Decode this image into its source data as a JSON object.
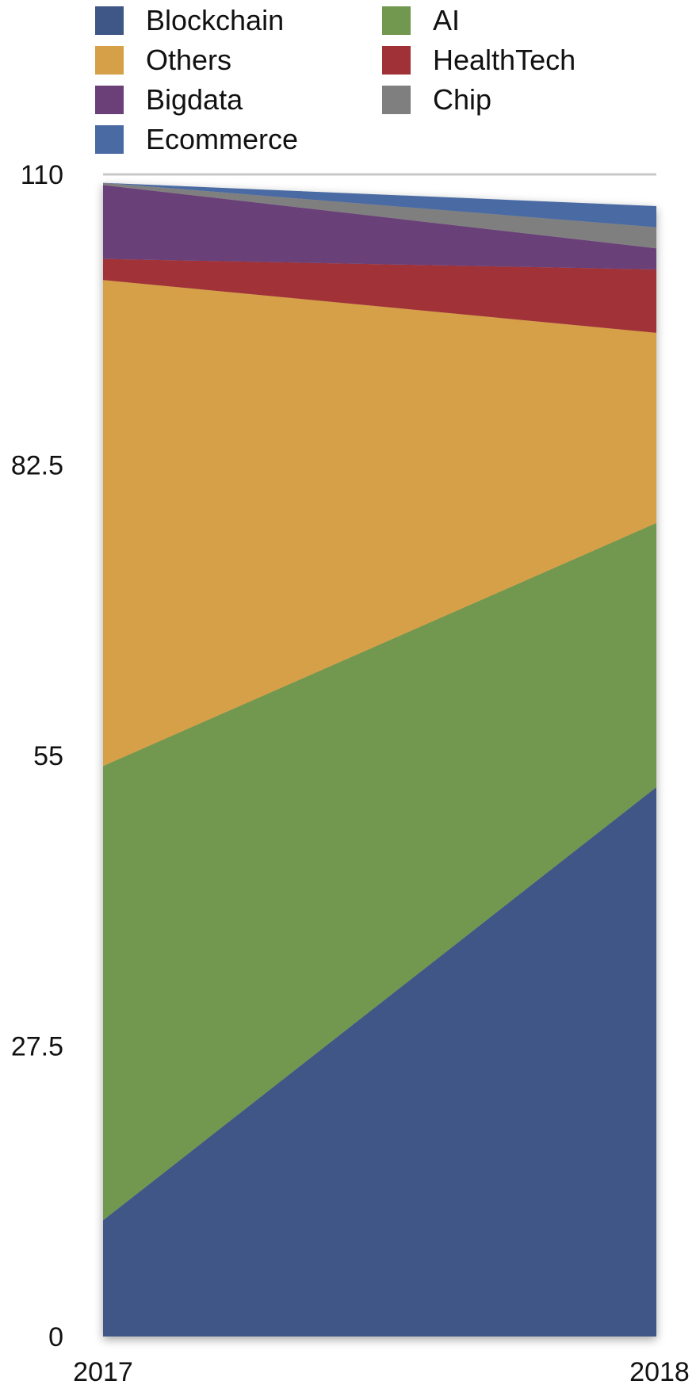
{
  "chart_data": {
    "type": "area",
    "stacked": true,
    "x": [
      "2017",
      "2018"
    ],
    "y_ticks": [
      "0",
      "27.5",
      "55",
      "82.5",
      "110"
    ],
    "ylim": [
      0,
      110
    ],
    "grid": false,
    "legend_position": "top",
    "series": [
      {
        "name": "Blockchain",
        "color": "#3f5787",
        "values": [
          11,
          52
        ]
      },
      {
        "name": "AI",
        "color": "#72974f",
        "values": [
          43,
          25
        ]
      },
      {
        "name": "Others",
        "color": "#d5a047",
        "values": [
          46,
          18
        ]
      },
      {
        "name": "HealthTech",
        "color": "#a03237",
        "values": [
          2,
          6
        ]
      },
      {
        "name": "Bigdata",
        "color": "#6b4079",
        "values": [
          7,
          2
        ]
      },
      {
        "name": "Chip",
        "color": "#7f7f7f",
        "values": [
          0.2,
          2
        ]
      },
      {
        "name": "Ecommerce",
        "color": "#4a6aa3",
        "values": [
          0,
          2
        ]
      }
    ],
    "legend": [
      {
        "name": "Blockchain",
        "color": "#3f5787"
      },
      {
        "name": "AI",
        "color": "#72974f"
      },
      {
        "name": "Others",
        "color": "#d5a047"
      },
      {
        "name": "HealthTech",
        "color": "#a03237"
      },
      {
        "name": "Bigdata",
        "color": "#6b4079"
      },
      {
        "name": "Chip",
        "color": "#7f7f7f"
      },
      {
        "name": "Ecommerce",
        "color": "#4a6aa3"
      }
    ]
  }
}
